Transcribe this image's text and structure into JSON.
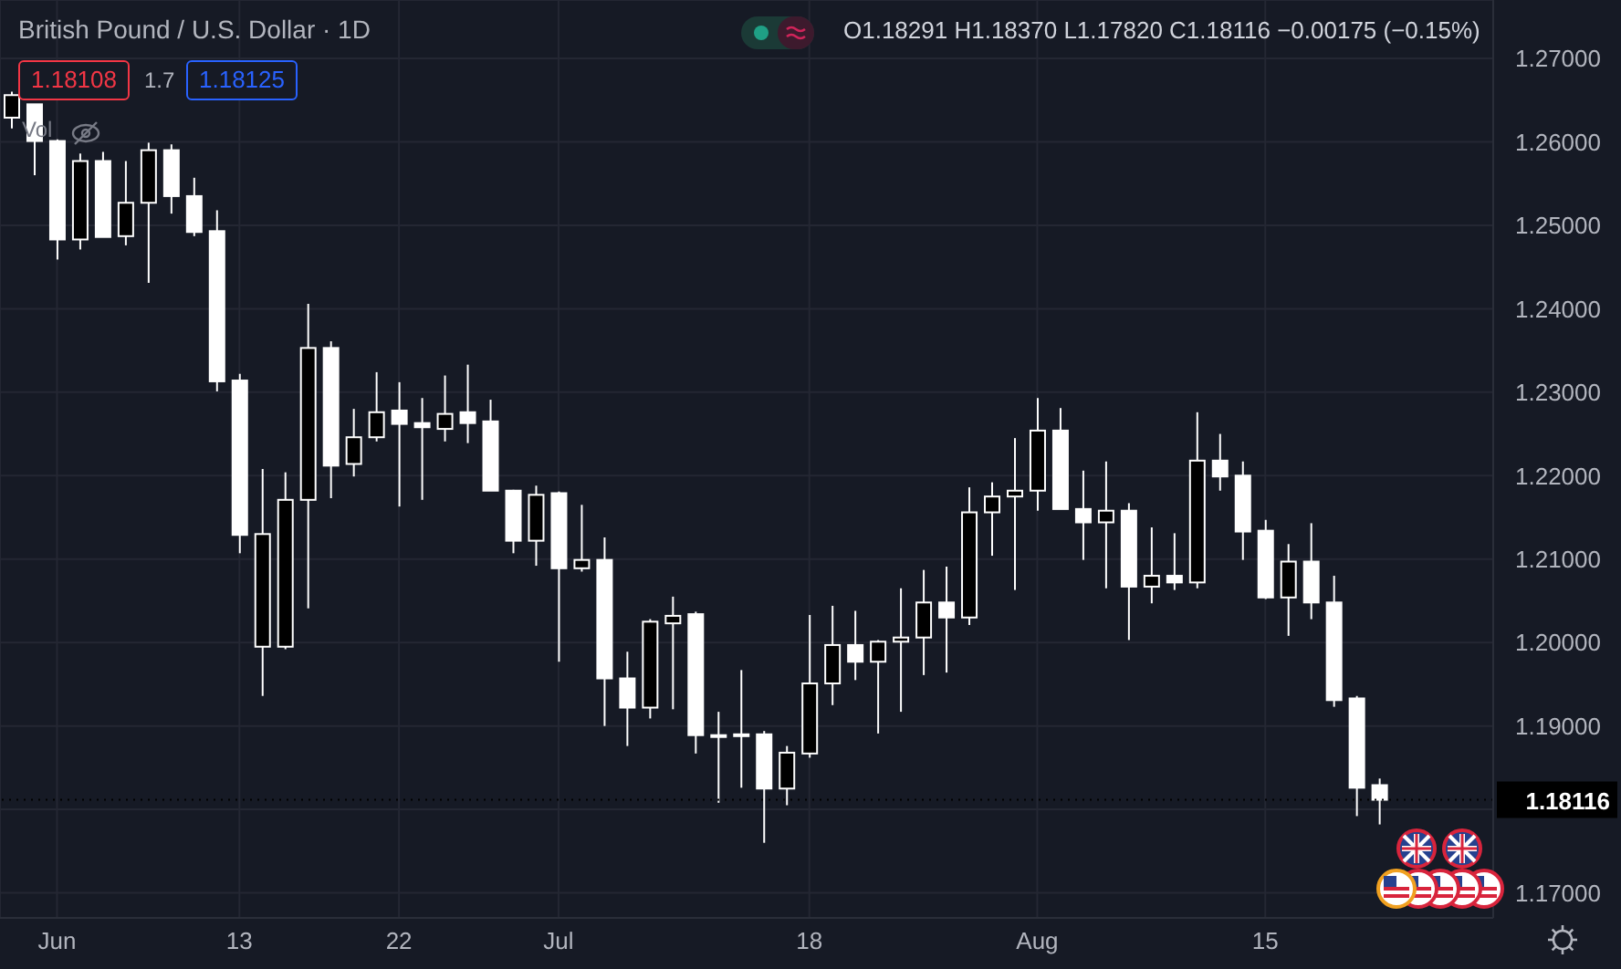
{
  "chart_data": {
    "type": "candlestick",
    "title": "British Pound / U.S. Dollar · 1D",
    "annotations": [
      "O1.18291 H1.18370 L1.17820 C1.18116 −0.00175 (−0.15%)",
      "1.18108",
      "1.7",
      "1.18125",
      "Vol"
    ],
    "categories": [
      null,
      null,
      "Jun",
      null,
      null,
      null,
      null,
      null,
      null,
      null,
      "13",
      null,
      null,
      null,
      null,
      null,
      null,
      "22",
      null,
      null,
      null,
      null,
      null,
      null,
      "Jul",
      null,
      null,
      null,
      null,
      null,
      null,
      null,
      null,
      null,
      null,
      "18",
      null,
      null,
      null,
      null,
      null,
      null,
      null,
      null,
      null,
      "Aug",
      null,
      null,
      null,
      null,
      null,
      null,
      null,
      null,
      null,
      "15",
      null,
      null,
      null,
      null,
      null
    ],
    "ohlc": [
      [
        1.2629,
        1.266,
        1.2616,
        1.2656
      ],
      [
        1.2645,
        1.2645,
        1.256,
        1.2601
      ],
      [
        1.2601,
        1.2603,
        1.2459,
        1.2483
      ],
      [
        1.2483,
        1.2586,
        1.2471,
        1.2577
      ],
      [
        1.2577,
        1.2588,
        1.2486,
        1.2486
      ],
      [
        1.2487,
        1.2577,
        1.2476,
        1.2527
      ],
      [
        1.2527,
        1.2599,
        1.2431,
        1.259
      ],
      [
        1.259,
        1.2597,
        1.2514,
        1.2535
      ],
      [
        1.2535,
        1.2557,
        1.2487,
        1.2492
      ],
      [
        1.2493,
        1.2518,
        1.2301,
        1.2313
      ],
      [
        1.2314,
        1.2322,
        1.2107,
        1.2129
      ],
      [
        1.1995,
        1.2208,
        1.1936,
        1.213
      ],
      [
        1.1995,
        1.2204,
        1.1992,
        1.2171
      ],
      [
        1.2171,
        1.2406,
        1.2041,
        1.2353
      ],
      [
        1.2353,
        1.2361,
        1.2173,
        1.2212
      ],
      [
        1.2214,
        1.228,
        1.2199,
        1.2246
      ],
      [
        1.2246,
        1.2324,
        1.2241,
        1.2276
      ],
      [
        1.2278,
        1.2312,
        1.2163,
        1.2262
      ],
      [
        1.2263,
        1.2293,
        1.2171,
        1.2258
      ],
      [
        1.2256,
        1.232,
        1.2241,
        1.2274
      ],
      [
        1.2276,
        1.2333,
        1.2239,
        1.2263
      ],
      [
        1.2265,
        1.2291,
        1.2182,
        1.2182
      ],
      [
        1.2182,
        1.2183,
        1.2107,
        1.2122
      ],
      [
        1.2122,
        1.2188,
        1.2092,
        1.2177
      ],
      [
        1.2179,
        1.2181,
        1.1977,
        1.2089
      ],
      [
        1.2089,
        1.2165,
        1.2085,
        1.2099
      ],
      [
        1.2099,
        1.2126,
        1.19,
        1.1957
      ],
      [
        1.1957,
        1.1989,
        1.1876,
        1.1922
      ],
      [
        1.1922,
        1.2028,
        1.1909,
        1.2025
      ],
      [
        1.2023,
        1.2055,
        1.192,
        1.2032
      ],
      [
        1.2034,
        1.2037,
        1.1867,
        1.1889
      ],
      [
        1.1889,
        1.1917,
        1.1808,
        1.1889
      ],
      [
        1.189,
        1.1967,
        1.1826,
        1.1889
      ],
      [
        1.189,
        1.1894,
        1.176,
        1.1825
      ],
      [
        1.1825,
        1.1876,
        1.1805,
        1.1868
      ],
      [
        1.1867,
        1.2033,
        1.1862,
        1.1951
      ],
      [
        1.1951,
        1.2044,
        1.1925,
        1.1997
      ],
      [
        1.1997,
        1.2038,
        1.1955,
        1.1977
      ],
      [
        1.1977,
        1.2003,
        1.1891,
        1.2001
      ],
      [
        1.2001,
        1.2065,
        1.1917,
        1.2006
      ],
      [
        1.2006,
        1.2087,
        1.1961,
        1.2048
      ],
      [
        1.2048,
        1.2091,
        1.1964,
        1.203
      ],
      [
        1.203,
        1.2186,
        1.2021,
        1.2156
      ],
      [
        1.2156,
        1.2192,
        1.2104,
        1.2175
      ],
      [
        1.2175,
        1.2245,
        1.2063,
        1.2182
      ],
      [
        1.2182,
        1.2293,
        1.2158,
        1.2254
      ],
      [
        1.2254,
        1.2281,
        1.216,
        1.216
      ],
      [
        1.216,
        1.2206,
        1.2099,
        1.2144
      ],
      [
        1.2144,
        1.2217,
        1.2065,
        1.2158
      ],
      [
        1.2158,
        1.2167,
        1.2003,
        1.2067
      ],
      [
        1.2067,
        1.2138,
        1.2047,
        1.208
      ],
      [
        1.208,
        1.2131,
        1.2063,
        1.2072
      ],
      [
        1.2072,
        1.2276,
        1.2065,
        1.2218
      ],
      [
        1.2218,
        1.225,
        1.2182,
        1.2199
      ],
      [
        1.22,
        1.2217,
        1.2099,
        1.2133
      ],
      [
        1.2134,
        1.2147,
        1.2052,
        1.2054
      ],
      [
        1.2054,
        1.2118,
        1.2008,
        1.2097
      ],
      [
        1.2097,
        1.2143,
        1.2028,
        1.2048
      ],
      [
        1.2048,
        1.208,
        1.1923,
        1.1931
      ],
      [
        1.1933,
        1.1936,
        1.1792,
        1.1826
      ],
      [
        1.18291,
        1.1837,
        1.1782,
        1.18116
      ]
    ],
    "color": "#ffffff",
    "colors": [
      "#000000",
      "#ffffff",
      "#ffffff",
      "#000000",
      "#ffffff",
      "#000000",
      "#000000",
      "#ffffff",
      "#ffffff",
      "#ffffff",
      "#ffffff",
      "#000000",
      "#000000",
      "#000000",
      "#ffffff",
      "#000000",
      "#000000",
      "#ffffff",
      "#ffffff",
      "#000000",
      "#ffffff",
      "#ffffff",
      "#ffffff",
      "#000000",
      "#ffffff",
      "#000000",
      "#ffffff",
      "#ffffff",
      "#000000",
      "#000000",
      "#ffffff",
      "#000000",
      "#ffffff",
      "#ffffff",
      "#000000",
      "#000000",
      "#000000",
      "#ffffff",
      "#000000",
      "#000000",
      "#000000",
      "#ffffff",
      "#000000",
      "#000000",
      "#000000",
      "#000000",
      "#ffffff",
      "#ffffff",
      "#000000",
      "#ffffff",
      "#000000",
      "#ffffff",
      "#000000",
      "#ffffff",
      "#ffffff",
      "#ffffff",
      "#000000",
      "#ffffff",
      "#ffffff",
      "#ffffff",
      "#ffffff"
    ],
    "ylim": [
      1.167,
      1.277
    ],
    "yticks": [
      {
        "value": 1.17,
        "label": "1.17000"
      },
      {
        "value": 1.18,
        "label": null
      },
      {
        "value": 1.19,
        "label": "1.19000"
      },
      {
        "value": 1.2,
        "label": "1.20000"
      },
      {
        "value": 1.21,
        "label": "1.21000"
      },
      {
        "value": 1.22,
        "label": "1.22000"
      },
      {
        "value": 1.23,
        "label": "1.23000"
      },
      {
        "value": 1.24,
        "label": "1.24000"
      },
      {
        "value": 1.25,
        "label": "1.25000"
      },
      {
        "value": 1.26,
        "label": "1.26000"
      },
      {
        "value": 1.27,
        "label": "1.27000"
      }
    ],
    "ref_lines": [
      {
        "axis": "y",
        "value": 1.18116,
        "label": "1.18116",
        "line_style": "dotted",
        "color": "#000000"
      }
    ],
    "grid": true,
    "legend": false
  }
}
